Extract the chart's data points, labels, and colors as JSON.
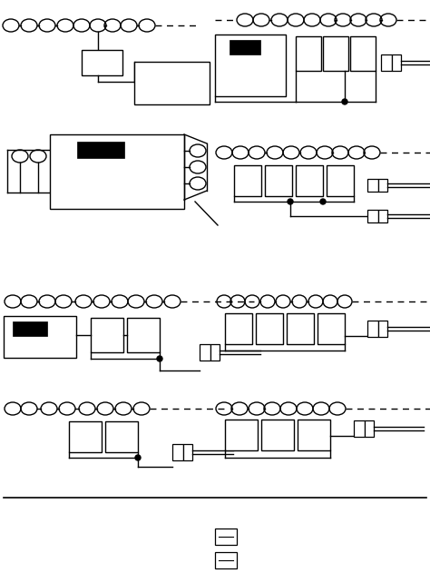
{
  "bg_color": "#ffffff",
  "lc": "#000000",
  "lw": 1.0,
  "ow": 0.022,
  "oh": 0.015
}
